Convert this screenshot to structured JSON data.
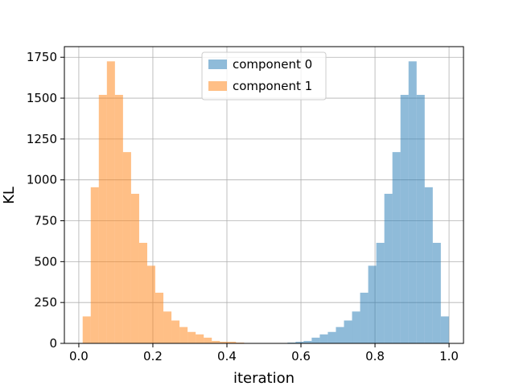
{
  "chart_data": {
    "type": "bar",
    "title": "",
    "xlabel": "iteration",
    "ylabel": "KL",
    "xlim": [
      -0.039,
      1.039
    ],
    "ylim": [
      0,
      1815
    ],
    "xticks": [
      0.0,
      0.2,
      0.4,
      0.6,
      0.8,
      1.0
    ],
    "xtick_labels": [
      "0.0",
      "0.2",
      "0.4",
      "0.6",
      "0.8",
      "1.0"
    ],
    "yticks": [
      0,
      250,
      500,
      750,
      1000,
      1250,
      1500,
      1750
    ],
    "ytick_labels": [
      "0",
      "250",
      "500",
      "750",
      "1000",
      "1250",
      "1500",
      "1750"
    ],
    "grid": true,
    "legend_position": "top-center",
    "bin_width": 0.0218,
    "series": [
      {
        "name": "component 0",
        "color": "#1f77b4",
        "alpha": 0.5,
        "bin_starts": [
          0.5636,
          0.5854,
          0.6072,
          0.629,
          0.6508,
          0.6726,
          0.6944,
          0.7162,
          0.738,
          0.7598,
          0.7816,
          0.8034,
          0.8252,
          0.847,
          0.8688,
          0.8906,
          0.9124,
          0.9342,
          0.956,
          0.9778
        ],
        "values": [
          5,
          10,
          15,
          35,
          55,
          70,
          100,
          140,
          195,
          310,
          475,
          615,
          915,
          1170,
          1520,
          1725,
          1520,
          955,
          615,
          165
        ]
      },
      {
        "name": "component 1",
        "color": "#ff7f0e",
        "alpha": 0.5,
        "bin_starts": [
          0.0104,
          0.0322,
          0.054,
          0.0758,
          0.0976,
          0.1194,
          0.1412,
          0.163,
          0.1848,
          0.2066,
          0.2284,
          0.2502,
          0.272,
          0.2938,
          0.3156,
          0.3374,
          0.3592,
          0.381,
          0.4028,
          0.4246
        ],
        "values": [
          165,
          955,
          1520,
          1725,
          1520,
          1170,
          915,
          615,
          475,
          310,
          195,
          140,
          100,
          70,
          55,
          35,
          15,
          10,
          10,
          5
        ]
      }
    ]
  }
}
